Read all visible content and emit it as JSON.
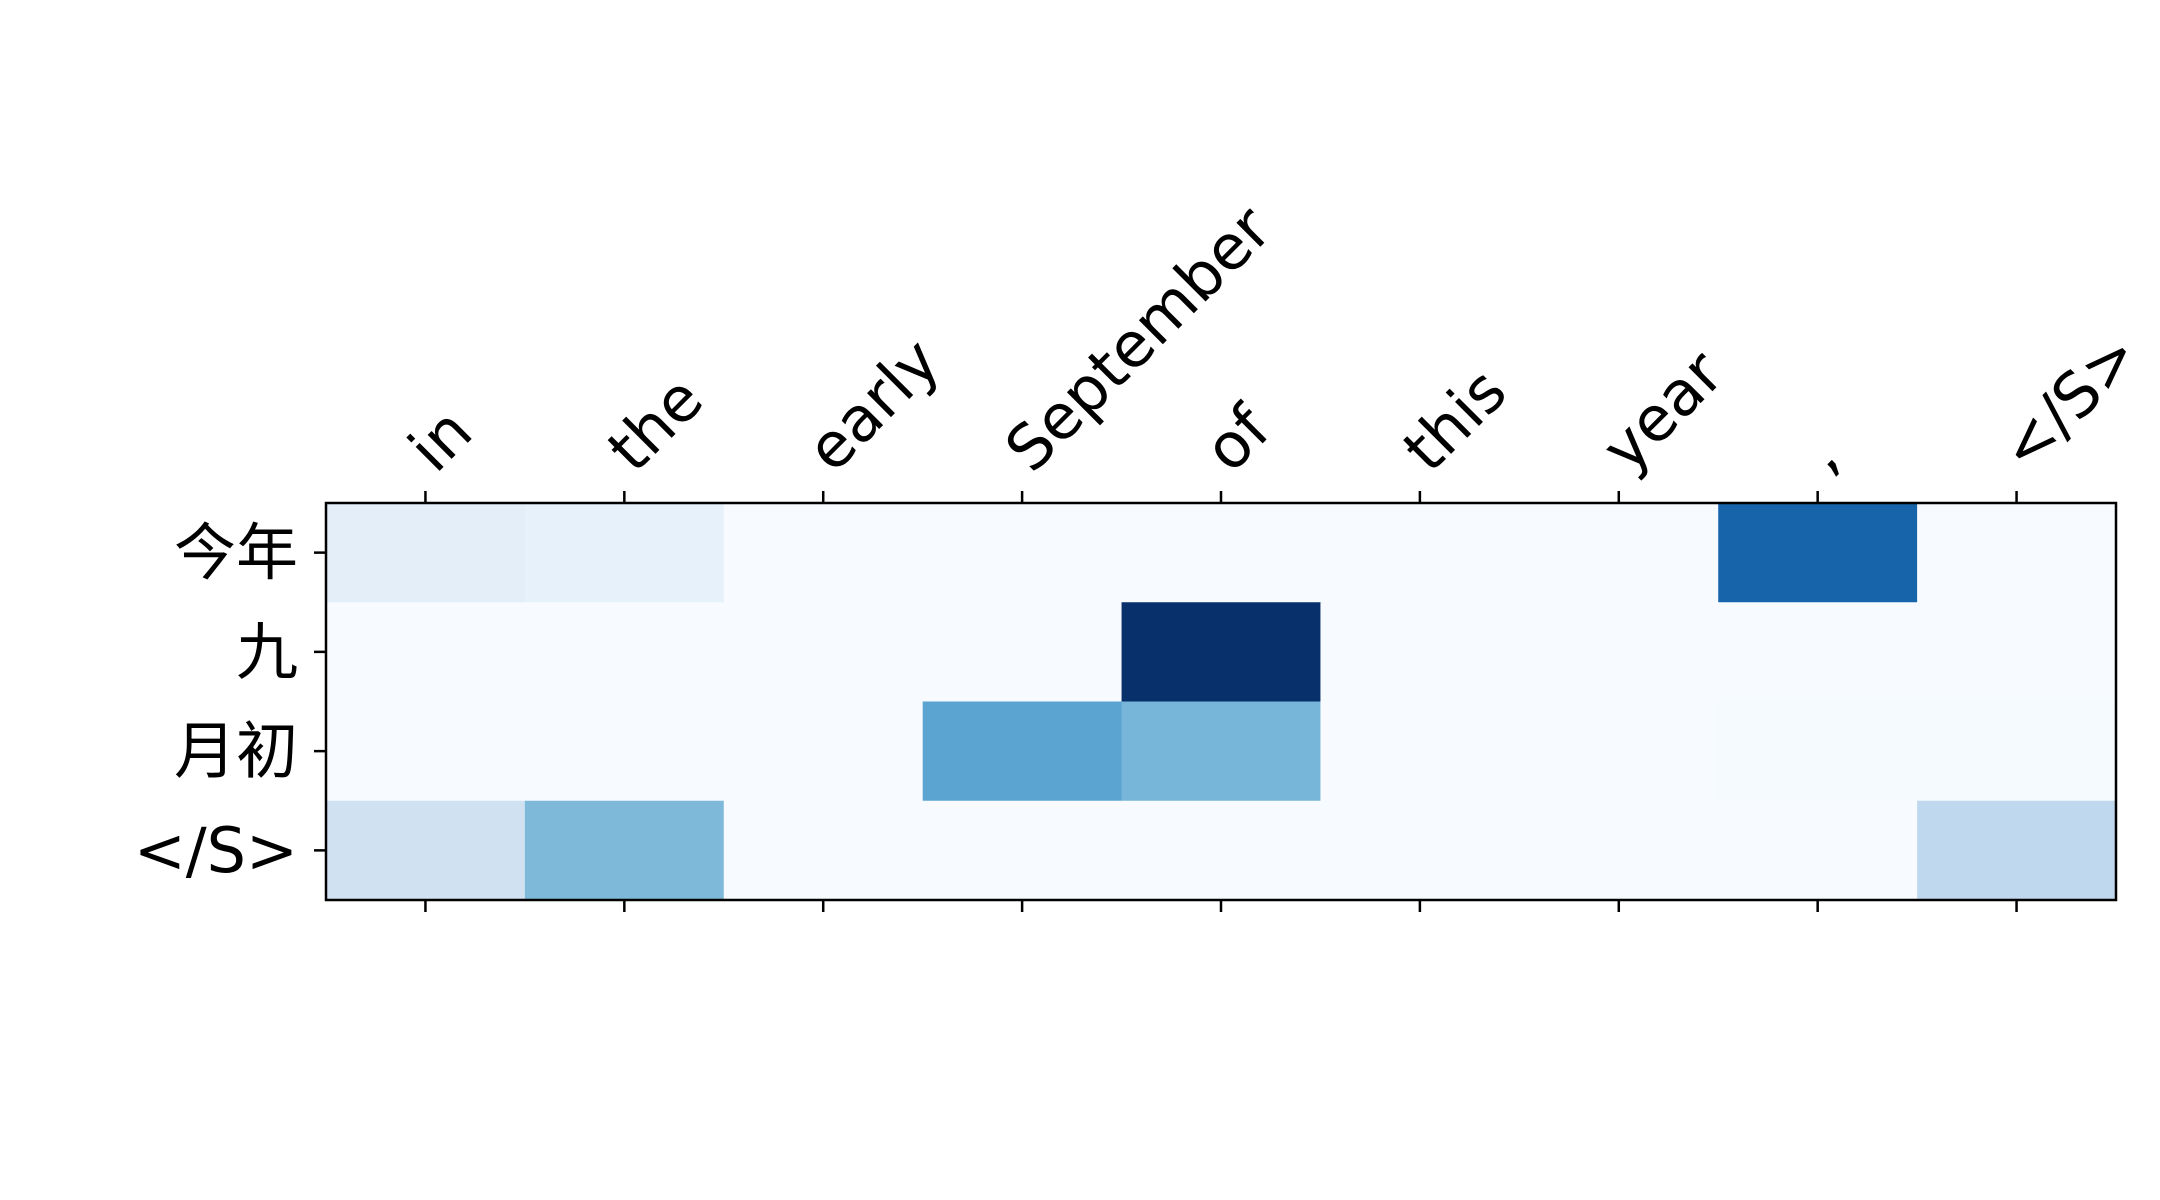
{
  "chart_data": {
    "type": "heatmap",
    "colormap": "Blues",
    "color_range": [
      0,
      1
    ],
    "x_position": "top",
    "x_tick_rotation_deg": 45,
    "grid": false,
    "legend": "none",
    "x_labels": [
      "in",
      "the",
      "early",
      "September",
      "of",
      "this",
      "year",
      ",",
      "</S>"
    ],
    "y_labels": [
      "今年",
      "九",
      "月初",
      "</S>"
    ],
    "values": [
      [
        0.1,
        0.08,
        0.0,
        0.0,
        0.0,
        0.0,
        0.0,
        0.8,
        0.0
      ],
      [
        0.0,
        0.0,
        0.0,
        0.0,
        1.0,
        0.0,
        0.0,
        0.0,
        0.0
      ],
      [
        0.0,
        0.0,
        0.0,
        0.55,
        0.47,
        0.0,
        0.0,
        0.01,
        0.01
      ],
      [
        0.2,
        0.45,
        0.0,
        0.0,
        0.0,
        0.0,
        0.0,
        0.0,
        0.27
      ]
    ]
  }
}
